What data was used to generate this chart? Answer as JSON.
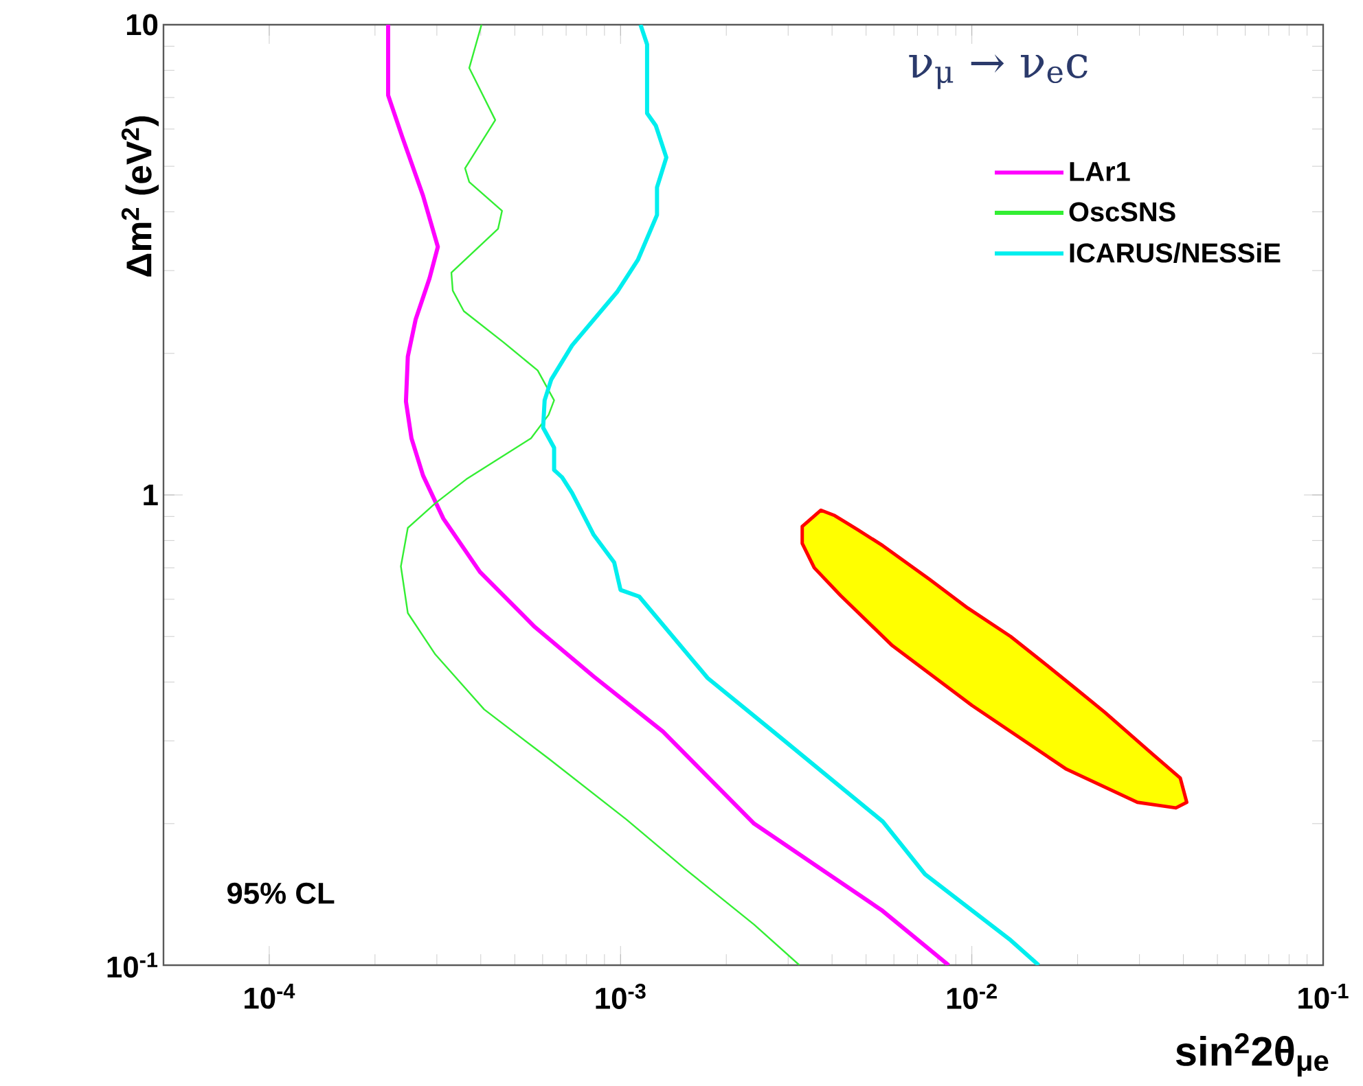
{
  "chart_data": {
    "type": "line",
    "title": "ν$_{μ}$ → ν$_{e}$c",
    "xlabel": "sin$^{2}$2θ$_{μe}$",
    "ylabel": "Δm$^{2}$ (eV$^{2}$)",
    "annotations": [
      "95% CL"
    ],
    "log": "xy",
    "xlim": [
      5e-05,
      0.1
    ],
    "ylim": [
      0.1,
      10
    ],
    "xticks": [
      {
        "value": 0.0001,
        "label": "10$^{-4}$"
      },
      {
        "value": 0.001,
        "label": "10$^{-3}$"
      },
      {
        "value": 0.01,
        "label": "10$^{-2}$"
      },
      {
        "value": 0.1,
        "label": "10$^{-1}$"
      }
    ],
    "yticks": [
      {
        "value": 0.1,
        "label": "10$^{-1}$"
      },
      1,
      10
    ],
    "grid": false,
    "legend": "top right",
    "marker": "none",
    "series": [
      {
        "name": "LAr1",
        "color": "#ff00ff",
        "x": [
          0.000218,
          0.000218,
          0.000239,
          0.000274,
          0.000302,
          0.000286,
          0.000261,
          0.000248,
          0.000245,
          0.000254,
          0.000274,
          0.000313,
          0.000398,
          0.00057,
          0.000839,
          0.00132,
          0.0024,
          0.00553,
          0.00859
        ],
        "values": [
          10,
          7.08,
          5.78,
          4.33,
          3.37,
          2.89,
          2.36,
          1.97,
          1.58,
          1.32,
          1.1,
          0.891,
          0.686,
          0.524,
          0.411,
          0.314,
          0.2,
          0.131,
          0.1
        ]
      },
      {
        "name": "OscSNS",
        "color": "#33ee33",
        "x": [
          0.000402,
          0.000371,
          0.00044,
          0.000361,
          0.000371,
          0.00046,
          0.000448,
          0.00033,
          0.000333,
          0.000358,
          0.000465,
          0.000581,
          0.000647,
          0.000624,
          0.000556,
          0.000364,
          0.000297,
          0.000248,
          0.000237,
          0.000248,
          0.000297,
          0.000409,
          0.000624,
          0.00104,
          0.00153,
          0.0024,
          0.00323
        ],
        "values": [
          10,
          8.09,
          6.27,
          4.95,
          4.63,
          4.02,
          3.68,
          2.97,
          2.72,
          2.46,
          2.11,
          1.84,
          1.59,
          1.48,
          1.32,
          1.08,
          0.96,
          0.851,
          0.705,
          0.561,
          0.458,
          0.35,
          0.275,
          0.204,
          0.16,
          0.122,
          0.1
        ]
      },
      {
        "name": "ICARUS/NESSiE",
        "color": "#00eeee",
        "x": [
          0.00114,
          0.00119,
          0.00119,
          0.00126,
          0.00135,
          0.00127,
          0.00127,
          0.00112,
          0.000977,
          0.000728,
          0.000635,
          0.000608,
          0.000602,
          0.000647,
          0.000647,
          0.000682,
          0.000728,
          0.000839,
          0.000959,
          0.001,
          0.00113,
          0.00177,
          0.00272,
          0.00558,
          0.00736,
          0.0129,
          0.0155
        ],
        "values": [
          10,
          9.08,
          6.48,
          6.1,
          5.22,
          4.51,
          3.94,
          3.16,
          2.7,
          2.08,
          1.76,
          1.59,
          1.39,
          1.26,
          1.13,
          1.09,
          1.01,
          0.822,
          0.719,
          0.628,
          0.608,
          0.408,
          0.314,
          0.202,
          0.156,
          0.113,
          0.1
        ]
      },
      {
        "type": "area",
        "color": "#ffff00",
        "x": [
          0.00372,
          0.00407,
          0.00474,
          0.00558,
          0.00757,
          0.00973,
          0.0129,
          0.016,
          0.0198,
          0.0239,
          0.0327,
          0.0392,
          0.0409,
          0.0381,
          0.0296,
          0.0186,
          0.01,
          0.00594,
          0.00423,
          0.00356,
          0.00329,
          0.00329
        ],
        "values": [
          0.928,
          0.904,
          0.843,
          0.78,
          0.662,
          0.575,
          0.5,
          0.44,
          0.387,
          0.345,
          0.281,
          0.25,
          0.222,
          0.216,
          0.222,
          0.261,
          0.357,
          0.478,
          0.611,
          0.7,
          0.789,
          0.857
        ]
      }
    ]
  }
}
